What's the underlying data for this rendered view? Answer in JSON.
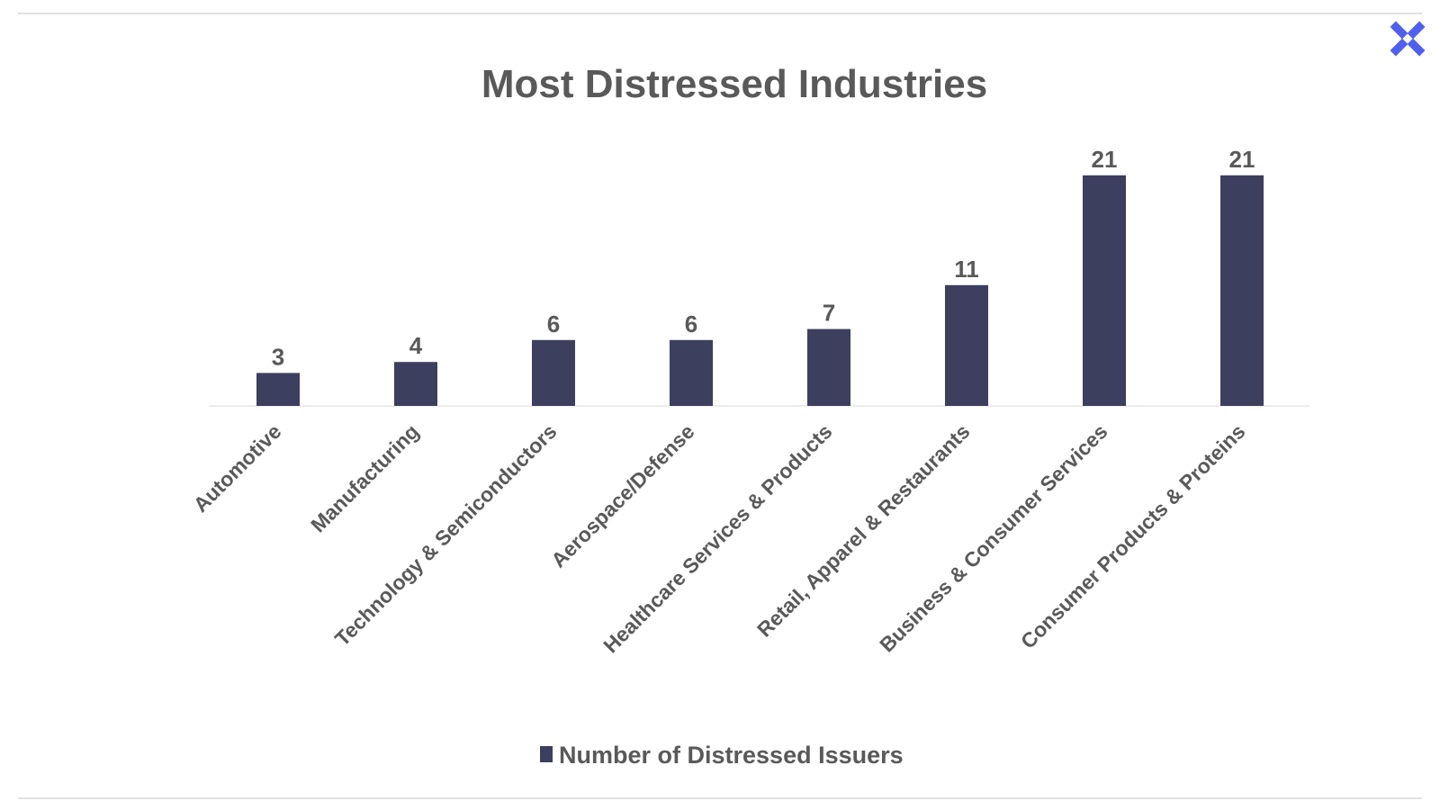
{
  "colors": {
    "bar": "#3c3f5e",
    "text": "#595959",
    "rule": "#d9d9d9",
    "axis": "#e6e6e6",
    "logo": "#4f5ff0"
  },
  "logo": {
    "icon": "x-logo-icon"
  },
  "chart_data": {
    "type": "bar",
    "title": "Most Distressed Industries",
    "categories": [
      "Automotive",
      "Manufacturing",
      "Technology & Semiconductors",
      "Aerospace/Defense",
      "Healthcare Services & Products",
      "Retail, Apparel & Restaurants",
      "Business & Consumer Services",
      "Consumer Products & Proteins"
    ],
    "series": [
      {
        "name": "Number of Distressed Issuers",
        "values": [
          3,
          4,
          6,
          6,
          7,
          11,
          21,
          21
        ]
      }
    ],
    "ylim": [
      0,
      21
    ],
    "grid": false,
    "data_labels": true,
    "legend_position": "bottom"
  }
}
